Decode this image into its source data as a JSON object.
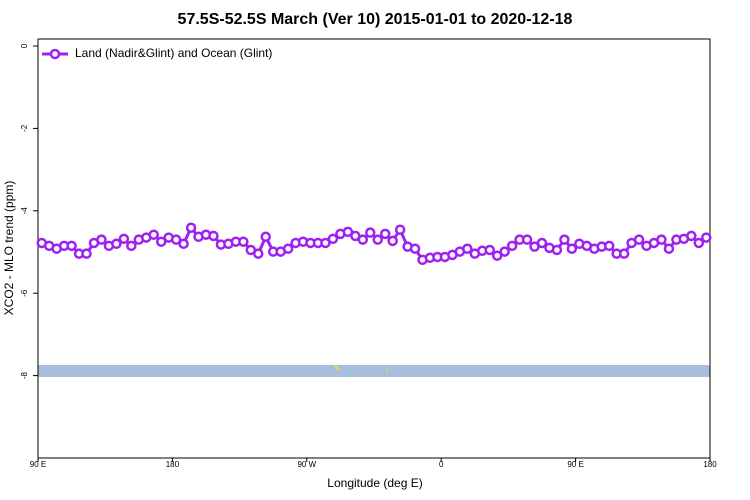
{
  "chart_data": {
    "type": "line",
    "title": "57.5S-52.5S March (Ver 10)   2015-01-01 to 2020-12-18",
    "xlabel": "Longitude (deg E)",
    "ylabel": "XCO2 - MLO trend (ppm)",
    "x": [
      92.5,
      97.5,
      102.5,
      107.5,
      112.5,
      117.5,
      122.5,
      127.5,
      132.5,
      137.5,
      142.5,
      147.5,
      152.5,
      157.5,
      162.5,
      167.5,
      172.5,
      177.5,
      182.5,
      187.5,
      192.5,
      197.5,
      202.5,
      207.5,
      212.5,
      217.5,
      222.5,
      227.5,
      232.5,
      237.5,
      242.5,
      247.5,
      252.5,
      257.5,
      262.5,
      267.5,
      272.5,
      277.5,
      282.5,
      287.5,
      292.5,
      297.5,
      302.5,
      307.5,
      312.5,
      317.5,
      322.5,
      327.5,
      332.5,
      337.5,
      342.5,
      347.5,
      352.5,
      357.5,
      362.5,
      367.5,
      372.5,
      377.5,
      382.5,
      387.5,
      392.5,
      397.5,
      402.5,
      407.5,
      412.5,
      417.5,
      422.5,
      427.5,
      432.5,
      437.5,
      442.5,
      447.5,
      452.5,
      457.5,
      462.5,
      467.5,
      472.5,
      477.5,
      482.5,
      487.5,
      492.5,
      497.5,
      502.5,
      507.5,
      512.5,
      517.5,
      522.5,
      527.5,
      532.5,
      537.5
    ],
    "series": [
      {
        "name": "Land (Nadir&Glint) and Ocean (Glint)",
        "color": "#a020f0",
        "values": [
          -4.78,
          -4.85,
          -4.92,
          -4.85,
          -4.85,
          -5.04,
          -5.04,
          -4.78,
          -4.7,
          -4.85,
          -4.8,
          -4.68,
          -4.85,
          -4.7,
          -4.65,
          -4.58,
          -4.75,
          -4.65,
          -4.7,
          -4.8,
          -4.41,
          -4.63,
          -4.58,
          -4.61,
          -4.82,
          -4.8,
          -4.75,
          -4.75,
          -4.95,
          -5.04,
          -4.63,
          -4.99,
          -4.99,
          -4.92,
          -4.78,
          -4.75,
          -4.78,
          -4.78,
          -4.78,
          -4.68,
          -4.56,
          -4.51,
          -4.61,
          -4.7,
          -4.53,
          -4.7,
          -4.56,
          -4.73,
          -4.46,
          -4.87,
          -4.92,
          -5.19,
          -5.14,
          -5.12,
          -5.12,
          -5.07,
          -4.99,
          -4.92,
          -5.04,
          -4.97,
          -4.95,
          -5.09,
          -4.99,
          -4.85,
          -4.7,
          -4.7,
          -4.87,
          -4.78,
          -4.9,
          -4.95,
          -4.7,
          -4.92,
          -4.8,
          -4.85,
          -4.92,
          -4.87,
          -4.85,
          -5.04,
          -5.04,
          -4.78,
          -4.7,
          -4.85,
          -4.78,
          -4.7,
          -4.92,
          -4.7,
          -4.68,
          -4.61,
          -4.78,
          -4.65
        ]
      }
    ],
    "xlim": [
      90,
      540
    ],
    "xticks": [
      {
        "value": 90,
        "label": "90 E"
      },
      {
        "value": 180,
        "label": "180"
      },
      {
        "value": 270,
        "label": "90 W"
      },
      {
        "value": 360,
        "label": "0"
      },
      {
        "value": 450,
        "label": "90 E"
      },
      {
        "value": 540,
        "label": "180"
      }
    ],
    "ylim": [
      -10,
      0.17
    ],
    "yticks": [
      0,
      -2,
      -4,
      -6,
      -8
    ],
    "legend": "upper left"
  }
}
